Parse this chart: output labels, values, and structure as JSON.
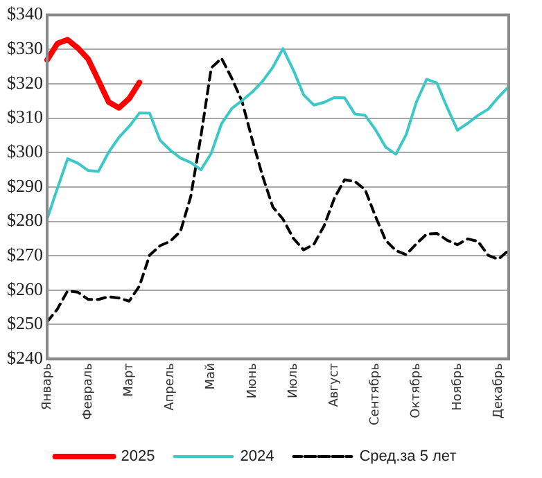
{
  "chart_data": {
    "type": "line",
    "marker": "none",
    "grid": "y",
    "legend": "bottom",
    "categories": [
      "Январь",
      null,
      null,
      null,
      "Февраль",
      null,
      null,
      null,
      "Март",
      null,
      null,
      null,
      "Апрель",
      null,
      null,
      null,
      "Май",
      null,
      null,
      null,
      "Июнь",
      null,
      null,
      null,
      "Июль",
      null,
      null,
      null,
      "Август",
      null,
      null,
      null,
      "Сентябрь",
      null,
      null,
      null,
      "Октябрь",
      null,
      null,
      null,
      "Ноябрь",
      null,
      null,
      null,
      "Декабрь",
      null
    ],
    "ylim": [
      240,
      340
    ],
    "yticks": [
      {
        "value": 240,
        "label": "$240"
      },
      {
        "value": 250,
        "label": "$250"
      },
      {
        "value": 260,
        "label": "$260"
      },
      {
        "value": 270,
        "label": "$270"
      },
      {
        "value": 280,
        "label": "$280"
      },
      {
        "value": 290,
        "label": "$290"
      },
      {
        "value": 300,
        "label": "$300"
      },
      {
        "value": 310,
        "label": "$310"
      },
      {
        "value": 320,
        "label": "$320"
      },
      {
        "value": 330,
        "label": "$330"
      },
      {
        "value": 340,
        "label": "$340"
      }
    ],
    "series": [
      {
        "name": "2025",
        "color": "#ff0000",
        "line_style": "solid",
        "values": [
          326.9,
          331.7,
          332.8,
          330.4,
          327.2,
          321,
          314.7,
          313,
          315.7,
          320.4,
          null,
          null,
          null,
          null,
          null,
          null,
          null,
          null,
          null,
          null,
          null,
          null,
          null,
          null,
          null,
          null,
          null,
          null,
          null,
          null,
          null,
          null,
          null,
          null,
          null,
          null,
          null,
          null,
          null,
          null,
          null,
          null,
          null,
          null,
          null,
          null
        ]
      },
      {
        "name": "2024",
        "color": "#3cc8c8",
        "line_style": "solid",
        "values": [
          280.7,
          289.6,
          298.2,
          296.9,
          294.8,
          294.5,
          300.1,
          304.4,
          307.6,
          311.5,
          311.4,
          303.6,
          300.7,
          298.4,
          297.1,
          295,
          299.8,
          308.4,
          312.8,
          315.1,
          317.6,
          320.7,
          324.8,
          330.2,
          324,
          316.8,
          313.8,
          314.6,
          316,
          315.9,
          311.2,
          310.8,
          306.7,
          301.6,
          299.5,
          305.2,
          314.7,
          321.3,
          320.2,
          313.1,
          306.5,
          308.5,
          310.8,
          312.6,
          316.1,
          319.2
        ]
      },
      {
        "name": "Сред.за 5 лет",
        "color": "#000000",
        "line_style": "dashed",
        "values": [
          250.8,
          254.5,
          259.8,
          259.4,
          257.3,
          257.3,
          258.1,
          257.7,
          256.8,
          261.2,
          270.2,
          272.9,
          274.2,
          277.1,
          287.2,
          304.9,
          324.6,
          327.4,
          321.6,
          314.9,
          303.7,
          293.2,
          284.2,
          280.6,
          275.1,
          271.7,
          273.3,
          278.7,
          286.7,
          292.1,
          291.6,
          289.2,
          281.5,
          274.5,
          271.5,
          270.3,
          273.5,
          276.3,
          276.5,
          274.5,
          273.2,
          274.9,
          274.2,
          270.1,
          269,
          271.6
        ]
      }
    ]
  }
}
